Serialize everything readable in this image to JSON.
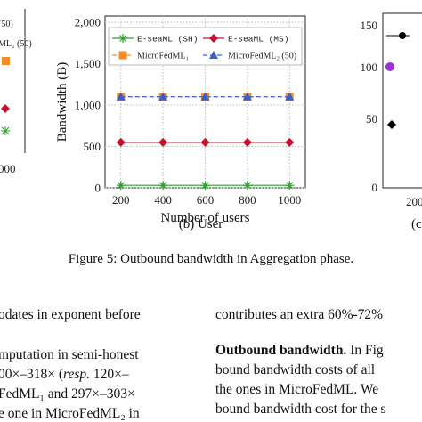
{
  "chart_data": {
    "type": "line",
    "ylabel": "Bandwidth (B)",
    "xlabel": "Number of users",
    "x": [
      200,
      400,
      600,
      800,
      1000
    ],
    "xlim": [
      125,
      1075
    ],
    "xticks": [
      200,
      400,
      600,
      800,
      1000
    ],
    "ylim": [
      0,
      2000
    ],
    "yticks": [
      0,
      500,
      {
        "value": 1000,
        "label": "1,000"
      },
      {
        "value": 1500,
        "label": "1,500"
      },
      {
        "value": 2000,
        "label": "2,000"
      }
    ],
    "grid": true,
    "series": [
      {
        "name": "E-seaML (SH)",
        "color": "#2ca02c",
        "marker": "asterisk",
        "dash": false,
        "values": [
          30,
          30,
          30,
          30,
          30
        ]
      },
      {
        "name": "E-seaML (MS)",
        "color": "#c8102e",
        "marker": "diamond",
        "dash": false,
        "values": [
          550,
          550,
          550,
          550,
          550
        ]
      },
      {
        "name": "MicroFedML₁",
        "color": "#f28c28",
        "marker": "square",
        "dash": true,
        "values": [
          1100,
          1100,
          1100,
          1100,
          1100
        ]
      },
      {
        "name": "MicroFedML₂ (50)",
        "color": "#3a5fcd",
        "marker": "triangle",
        "dash": true,
        "values": [
          1100,
          1100,
          1100,
          1100,
          1100
        ]
      }
    ],
    "subcaption": "(b) User"
  },
  "fragments": {
    "left_legend": "ML₂ (50)",
    "left_legend_top": "(50)",
    "left_tick": "000",
    "right_ticks": [
      "150",
      "100",
      "50",
      "0"
    ],
    "right_xtick": "200",
    "right_caption": "(c"
  },
  "caption": "Figure 5: Outbound bandwidth in Aggregation phase.",
  "left_column": {
    "line0": "odates in exponent before",
    "line1": "mputation in semi-honest",
    "line2a": "00×–318× (",
    "line2b": "resp.",
    "line2c": " 120×–",
    "line3": "FedML₁ and 297×–303×",
    "line4": "e one in MicroFedML₂ in"
  },
  "right_column": {
    "line0": "contributes an extra 60%-72% ",
    "line1a": "Outbound bandwidth.",
    "line1b": " In Fig",
    "line2": "bound bandwidth costs of all ",
    "line3": "the ones in MicroFedML. We",
    "line4": "bound bandwidth cost for the s"
  }
}
